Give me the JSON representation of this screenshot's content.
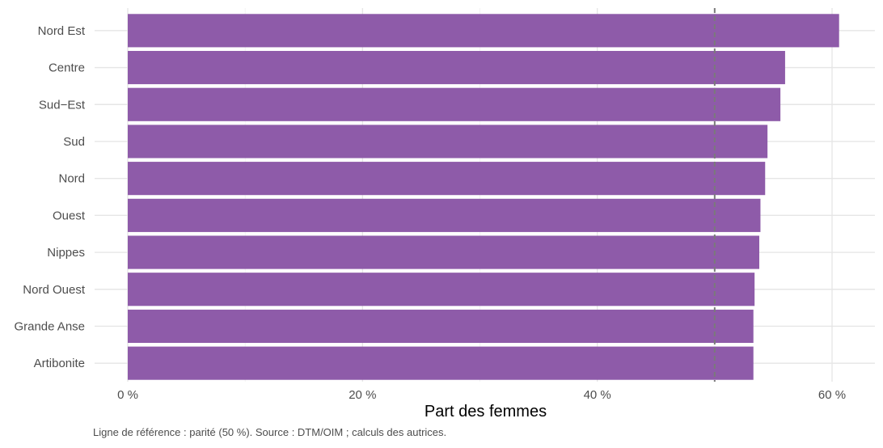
{
  "chart_data": {
    "type": "bar",
    "orientation": "horizontal",
    "categories": [
      "Nord Est",
      "Centre",
      "Sud−Est",
      "Sud",
      "Nord",
      "Ouest",
      "Nippes",
      "Nord Ouest",
      "Grande Anse",
      "Artibonite"
    ],
    "values": [
      60.6,
      56.0,
      55.6,
      54.5,
      54.3,
      53.9,
      53.8,
      53.4,
      53.3,
      53.3
    ],
    "xlabel": "Part des femmes",
    "ylabel": "",
    "xlim": [
      0,
      62
    ],
    "xticks": [
      0,
      20,
      40,
      60
    ],
    "xtick_labels": [
      "0 %",
      "20 %",
      "40 %",
      "60 %"
    ],
    "reference_line": {
      "value": 50,
      "style": "dashed"
    },
    "grid": true,
    "bar_color": "#8e5ba9",
    "caption": "Ligne de référence : parité (50 %). Source : DTM/OIM ; calculs des autrices."
  }
}
